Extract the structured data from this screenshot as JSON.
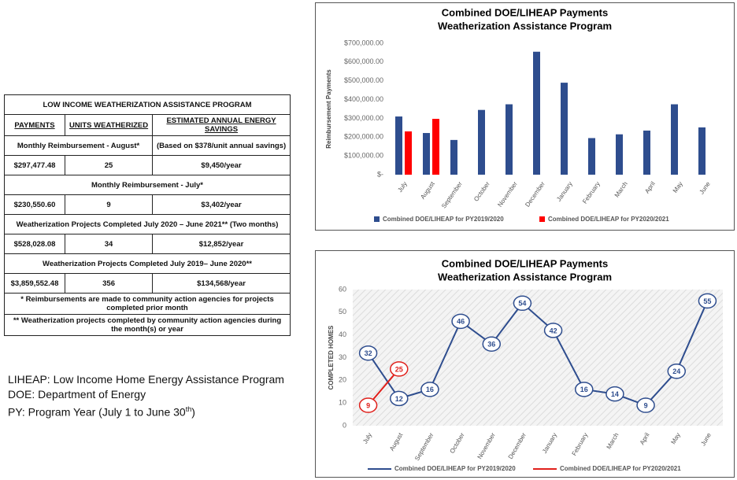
{
  "table": {
    "title": "LOW INCOME WEATHERIZATION ASSISTANCE PROGRAM",
    "columns": [
      "PAYMENTS",
      "UNITS WEATHERIZED",
      "ESTIMATED ANNUAL ENERGY SAVINGS"
    ],
    "sections": [
      {
        "heading": "Monthly Reimbursement - August*",
        "note": "(Based on $378/unit annual savings)",
        "values": [
          "$297,477.48",
          "25",
          "$9,450/year"
        ]
      },
      {
        "heading": "Monthly Reimbursement - July*",
        "values": [
          "$230,550.60",
          "9",
          "$3,402/year"
        ]
      },
      {
        "heading": "Weatherization Projects Completed July 2020 – June 2021** (Two months)",
        "values": [
          "$528,028.08",
          "34",
          "$12,852/year"
        ]
      },
      {
        "heading": "Weatherization Projects Completed July 2019– June 2020**",
        "values": [
          "$3,859,552.48",
          "356",
          "$134,568/year"
        ]
      }
    ],
    "footnotes": [
      "* Reimbursements are made to community action agencies for projects completed prior month",
      "** Weatherization projects completed by community action agencies during the month(s) or year"
    ]
  },
  "notes": {
    "lines": [
      "LIHEAP: Low Income Home Energy Assistance Program",
      "DOE: Department of Energy"
    ],
    "py": {
      "text": "PY: Program Year (July 1 to June 30",
      "sup": "th",
      "end": ")"
    }
  },
  "chart_data": [
    {
      "type": "bar",
      "title": "Combined DOE/LIHEAP Payments",
      "subtitle": "Weatherization Assistance Program",
      "y_label": "Reimbursement Payments",
      "categories": [
        "July",
        "August",
        "September",
        "October",
        "November",
        "December",
        "January",
        "February",
        "March",
        "April",
        "May",
        "June"
      ],
      "series": [
        {
          "name": "Combined DOE/LIHEAP for PY2019/2020",
          "color": "#2e4d8e",
          "values": [
            310000,
            222000,
            185000,
            345000,
            375000,
            655000,
            490000,
            195000,
            215000,
            235000,
            375000,
            252000
          ]
        },
        {
          "name": "Combined DOE/LIHEAP for PY2020/2021",
          "color": "#ff0000",
          "values": [
            230550.6,
            297477.48,
            null,
            null,
            null,
            null,
            null,
            null,
            null,
            null,
            null,
            null
          ]
        }
      ],
      "ylim": [
        0,
        700000
      ],
      "yticks": [
        {
          "value": 0,
          "label": "$-"
        },
        {
          "value": 100000,
          "label": "$100,000.00"
        },
        {
          "value": 200000,
          "label": "$200,000.00"
        },
        {
          "value": 300000,
          "label": "$300,000.00"
        },
        {
          "value": 400000,
          "label": "$400,000.00"
        },
        {
          "value": 500000,
          "label": "$500,000.00"
        },
        {
          "value": 600000,
          "label": "$600,000.00"
        },
        {
          "value": 700000,
          "label": "$700,000.00"
        }
      ],
      "grid": false,
      "legend": "bottom"
    },
    {
      "type": "line",
      "title": "Combined DOE/LIHEAP Payments",
      "subtitle": "Weatherization Assistance Program",
      "y_label": "COMPLETED HOMES",
      "categories": [
        "July",
        "August",
        "September",
        "October",
        "November",
        "December",
        "January",
        "February",
        "March",
        "April",
        "May",
        "June"
      ],
      "series": [
        {
          "name": "Combined DOE/LIHEAP for PY2019/2020",
          "color": "#2e4d8e",
          "values": [
            32,
            12,
            16,
            46,
            36,
            54,
            42,
            16,
            14,
            9,
            24,
            55
          ]
        },
        {
          "name": "Combined DOE/LIHEAP for PY2020/2021",
          "color": "#e0201b",
          "values": [
            9,
            25,
            null,
            null,
            null,
            null,
            null,
            null,
            null,
            null,
            null,
            null
          ]
        }
      ],
      "ylim": [
        0,
        60
      ],
      "yticks": [
        0,
        10,
        20,
        30,
        40,
        50,
        60
      ],
      "grid": false,
      "legend": "bottom"
    }
  ]
}
